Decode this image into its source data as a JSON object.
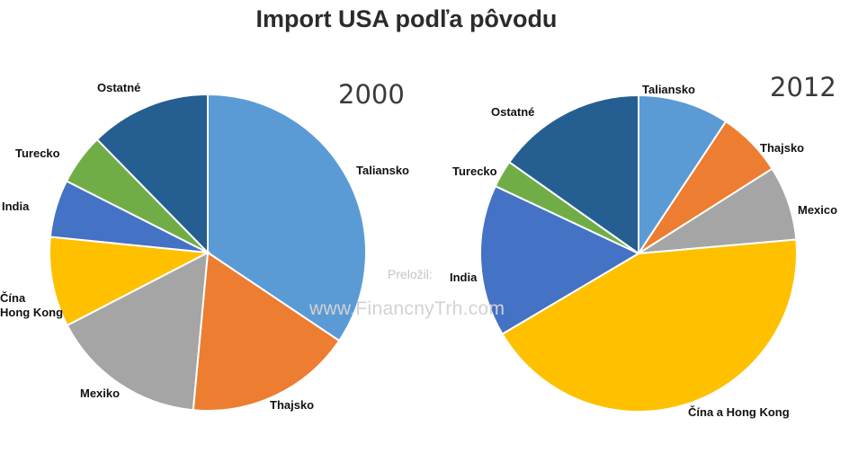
{
  "title": "Import USA podľa pôvodu",
  "watermark": {
    "credit": "Preložil:",
    "site": "www.FinancnyTrh.com"
  },
  "chart_data": [
    {
      "type": "pie",
      "title": "2000",
      "start_angle": "12 o'clock, clockwise",
      "labels": [
        "Taliansko",
        "Thajsko",
        "Mexiko",
        "Čína\nHong Kong",
        "India",
        "Turecko",
        "Ostatné"
      ],
      "values": [
        36.3,
        18.0,
        16.8,
        9.7,
        6.2,
        5.5,
        13.0
      ],
      "colors": [
        "#5B9BD5",
        "#ED7D31",
        "#A5A5A5",
        "#FFC000",
        "#4472C4",
        "#70AD47",
        "#255E91"
      ]
    },
    {
      "type": "pie",
      "title": "2012",
      "start_angle": "12 o'clock, clockwise",
      "labels": [
        "Taliansko",
        "Thajsko",
        "Mexico",
        "Čína a Hong Kong",
        "India",
        "Turecko",
        "Ostatné"
      ],
      "values": [
        9.3,
        6.7,
        7.6,
        42.9,
        15.5,
        2.8,
        15.2
      ],
      "colors": [
        "#5B9BD5",
        "#ED7D31",
        "#A5A5A5",
        "#FFC000",
        "#4472C4",
        "#70AD47",
        "#255E91"
      ]
    }
  ]
}
